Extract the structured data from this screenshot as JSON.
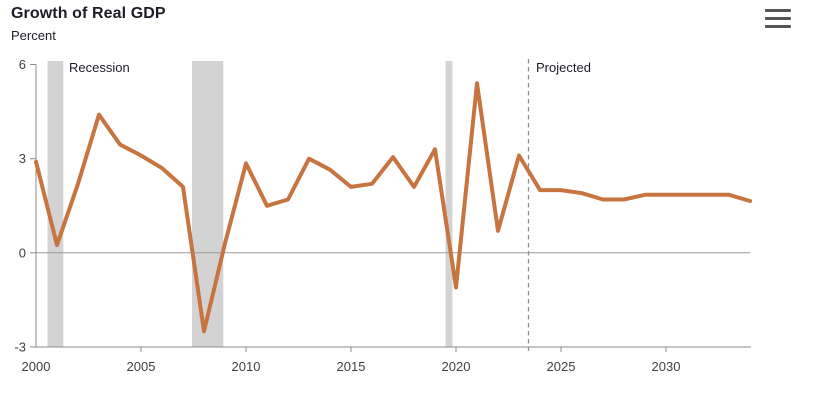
{
  "chart_data": {
    "type": "line",
    "title": "Growth of Real GDP",
    "xlabel": "",
    "ylabel": "Percent",
    "x": [
      2000,
      2001,
      2002,
      2003,
      2004,
      2005,
      2006,
      2007,
      2008,
      2009,
      2010,
      2011,
      2012,
      2013,
      2014,
      2015,
      2016,
      2017,
      2018,
      2019,
      2020,
      2021,
      2022,
      2023,
      2024,
      2025,
      2026,
      2027,
      2028,
      2029,
      2030,
      2031,
      2032,
      2033,
      2034
    ],
    "values": [
      2.9,
      0.25,
      2.2,
      4.4,
      3.45,
      3.1,
      2.7,
      2.1,
      -2.5,
      0.3,
      2.85,
      1.5,
      1.7,
      3.0,
      2.65,
      2.1,
      2.2,
      3.05,
      2.1,
      3.3,
      -1.1,
      5.4,
      0.7,
      3.1,
      2.0,
      2.0,
      1.9,
      1.7,
      1.7,
      1.85,
      1.85,
      1.85,
      1.85,
      1.85,
      1.65
    ],
    "xlim": [
      2000,
      2034
    ],
    "ylim": [
      -3,
      6
    ],
    "yticks": [
      6,
      3,
      0,
      -3
    ],
    "xticks": [
      2000,
      2005,
      2010,
      2015,
      2020,
      2025,
      2030
    ],
    "grid": "zero-line-only",
    "legend": "none",
    "recession_bands": [
      [
        2000.55,
        2001.3
      ],
      [
        2007.43,
        2008.92
      ],
      [
        2019.5,
        2019.83
      ]
    ],
    "projected_divider_x": 2023.45,
    "annotations": {
      "recession": "Recession",
      "projected": "Projected"
    }
  },
  "colors": {
    "line": "#c77440",
    "recession_band": "#d3d3d3",
    "axis": "#8b8b8b",
    "zero_line": "#9a9a9a",
    "projected_line": "#8f8f8f",
    "title_text": "#1d1d28",
    "tick_text": "#3f3f46",
    "menu_icon": "#555555"
  }
}
